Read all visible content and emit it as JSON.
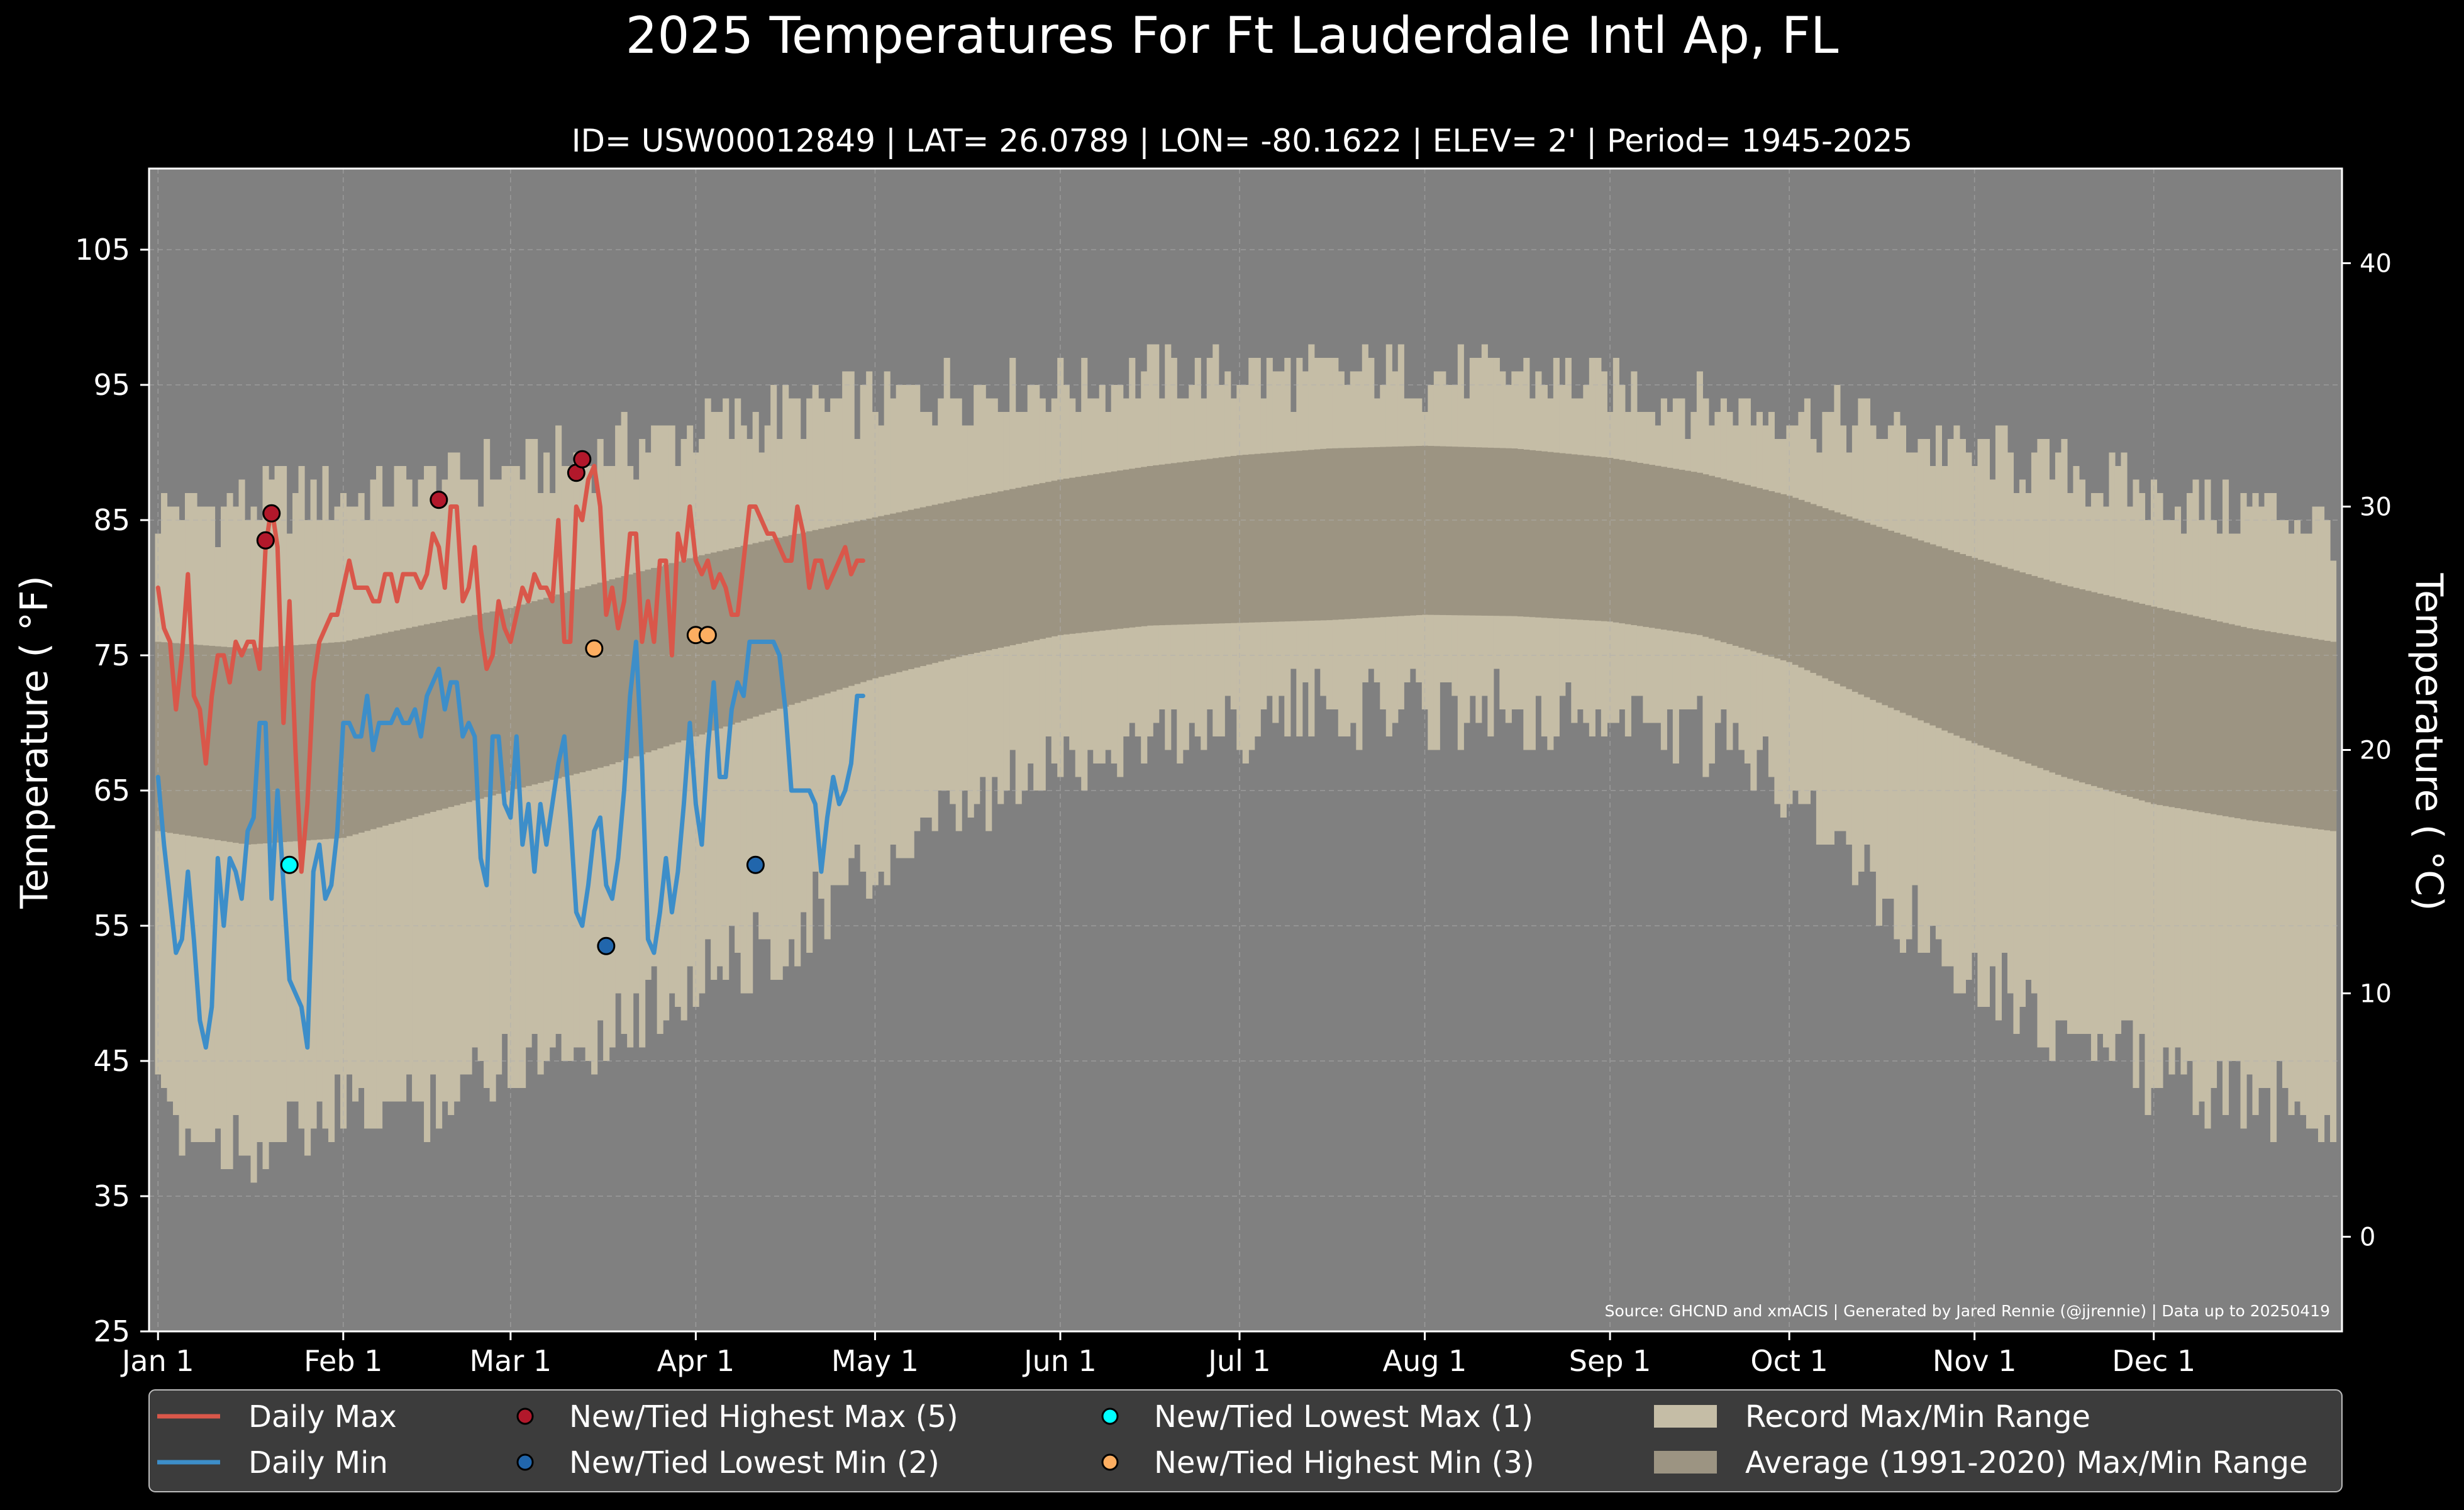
{
  "chart_data": {
    "type": "area",
    "title": "2025 Temperatures For Ft Lauderdale Intl Ap, FL",
    "subtitle": "ID= USW00012849 | LAT= 26.0789 | LON= -80.1622 | ELEV= 2' | Period= 1945-2025",
    "ylabel": "Temperature ( °F)",
    "ylabel_right": "Temperature ( °C)",
    "source": "Source: GHCND and xmACIS | Generated by Jared Rennie (@jjrennie) | Data up to 20250419",
    "ylim": [
      25,
      111
    ],
    "ylim_right": [
      -3.89,
      43.89
    ],
    "xlim": [
      -1.5,
      365.5
    ],
    "grid": true,
    "legend_position": "bottom",
    "x_ticks": [
      {
        "label": "Jan 1",
        "day": 0
      },
      {
        "label": "Feb 1",
        "day": 31
      },
      {
        "label": "Mar 1",
        "day": 59
      },
      {
        "label": "Apr 1",
        "day": 90
      },
      {
        "label": "May 1",
        "day": 120
      },
      {
        "label": "Jun 1",
        "day": 151
      },
      {
        "label": "Jul 1",
        "day": 181
      },
      {
        "label": "Aug 1",
        "day": 212
      },
      {
        "label": "Sep 1",
        "day": 243
      },
      {
        "label": "Oct 1",
        "day": 273
      },
      {
        "label": "Nov 1",
        "day": 304
      },
      {
        "label": "Dec 1",
        "day": 334
      }
    ],
    "y_ticks": [
      "25",
      "35",
      "45",
      "55",
      "65",
      "75",
      "85",
      "95",
      "105"
    ],
    "y_ticks_right": [
      "0",
      "10",
      "20",
      "30",
      "40"
    ],
    "record_max_knots": [
      [
        0,
        85
      ],
      [
        10,
        85
      ],
      [
        20,
        86
      ],
      [
        31,
        86
      ],
      [
        45,
        87
      ],
      [
        59,
        88
      ],
      [
        75,
        89
      ],
      [
        90,
        91
      ],
      [
        105,
        92
      ],
      [
        120,
        93
      ],
      [
        135,
        94
      ],
      [
        151,
        94
      ],
      [
        166,
        95
      ],
      [
        181,
        95
      ],
      [
        196,
        95
      ],
      [
        212,
        95
      ],
      [
        227,
        95
      ],
      [
        243,
        94
      ],
      [
        258,
        93
      ],
      [
        273,
        92
      ],
      [
        288,
        91
      ],
      [
        304,
        89
      ],
      [
        319,
        88
      ],
      [
        334,
        86
      ],
      [
        350,
        85
      ],
      [
        364,
        84
      ]
    ],
    "record_min_knots": [
      [
        0,
        42
      ],
      [
        10,
        40
      ],
      [
        20,
        40
      ],
      [
        31,
        42
      ],
      [
        45,
        43
      ],
      [
        59,
        46
      ],
      [
        75,
        48
      ],
      [
        90,
        52
      ],
      [
        105,
        55
      ],
      [
        120,
        60
      ],
      [
        135,
        64
      ],
      [
        151,
        68
      ],
      [
        166,
        70
      ],
      [
        181,
        71
      ],
      [
        196,
        72
      ],
      [
        212,
        72
      ],
      [
        227,
        72
      ],
      [
        243,
        71
      ],
      [
        258,
        70
      ],
      [
        273,
        67
      ],
      [
        288,
        58
      ],
      [
        304,
        53
      ],
      [
        319,
        48
      ],
      [
        334,
        45
      ],
      [
        350,
        43
      ],
      [
        364,
        42
      ]
    ],
    "normal_max_knots": [
      [
        0,
        76
      ],
      [
        15,
        75.5
      ],
      [
        31,
        76
      ],
      [
        45,
        77.3
      ],
      [
        59,
        78.5
      ],
      [
        75,
        80.5
      ],
      [
        90,
        82.3
      ],
      [
        105,
        83.8
      ],
      [
        120,
        85.2
      ],
      [
        135,
        86.6
      ],
      [
        151,
        88
      ],
      [
        166,
        89
      ],
      [
        181,
        89.8
      ],
      [
        196,
        90.3
      ],
      [
        212,
        90.5
      ],
      [
        227,
        90.3
      ],
      [
        243,
        89.6
      ],
      [
        258,
        88.5
      ],
      [
        273,
        86.8
      ],
      [
        288,
        84.5
      ],
      [
        304,
        82.2
      ],
      [
        319,
        80.2
      ],
      [
        334,
        78.6
      ],
      [
        350,
        77
      ],
      [
        364,
        76
      ]
    ],
    "normal_min_knots": [
      [
        0,
        62
      ],
      [
        15,
        61
      ],
      [
        31,
        61.5
      ],
      [
        45,
        63.3
      ],
      [
        59,
        65
      ],
      [
        75,
        66.8
      ],
      [
        90,
        69
      ],
      [
        105,
        71.2
      ],
      [
        120,
        73.3
      ],
      [
        135,
        75
      ],
      [
        151,
        76.5
      ],
      [
        166,
        77.2
      ],
      [
        181,
        77.4
      ],
      [
        196,
        77.6
      ],
      [
        212,
        78
      ],
      [
        227,
        77.9
      ],
      [
        243,
        77.5
      ],
      [
        258,
        76.5
      ],
      [
        273,
        74.5
      ],
      [
        288,
        71.5
      ],
      [
        304,
        68.5
      ],
      [
        319,
        66
      ],
      [
        334,
        64
      ],
      [
        350,
        62.8
      ],
      [
        364,
        62
      ]
    ],
    "series": [
      {
        "name": "Daily Max",
        "color": "#d9574a",
        "values": [
          80,
          77,
          76,
          71,
          75,
          81,
          72,
          71,
          67,
          72,
          75,
          75,
          73,
          76,
          75,
          76,
          76,
          74,
          83,
          86,
          83,
          70,
          79,
          68,
          59,
          64,
          73,
          76,
          77,
          78,
          78,
          80,
          82,
          80,
          80,
          80,
          79,
          79,
          81,
          81,
          79,
          81,
          81,
          81,
          80,
          81,
          84,
          83,
          80,
          86,
          86,
          79,
          80,
          83,
          77,
          74,
          75,
          79,
          77,
          76,
          78,
          80,
          79,
          81,
          80,
          80,
          79,
          85,
          76,
          76,
          86,
          85,
          88,
          89,
          86,
          78,
          80,
          77,
          79,
          84,
          84,
          76,
          79,
          76,
          82,
          82,
          75,
          84,
          82,
          86,
          82,
          81,
          82,
          80,
          81,
          80,
          78,
          78,
          82,
          86,
          86,
          85,
          84,
          84,
          83,
          82,
          82,
          86,
          84,
          80,
          82,
          82,
          80,
          81,
          82,
          83,
          81,
          82,
          82
        ]
      },
      {
        "name": "Daily Min",
        "color": "#3d8ec9",
        "values": [
          66,
          61,
          57,
          53,
          54,
          59,
          54,
          48,
          46,
          49,
          60,
          55,
          60,
          59,
          57,
          62,
          63,
          70,
          70,
          57,
          65,
          58,
          51,
          50,
          49,
          46,
          59,
          61,
          57,
          58,
          62,
          70,
          70,
          69,
          69,
          72,
          68,
          70,
          70,
          70,
          71,
          70,
          70,
          71,
          69,
          72,
          73,
          74,
          71,
          73,
          73,
          69,
          70,
          69,
          60,
          58,
          69,
          69,
          64,
          63,
          69,
          61,
          64,
          59,
          64,
          61,
          64,
          67,
          69,
          63,
          56,
          55,
          58,
          62,
          63,
          58,
          57,
          60,
          65,
          72,
          76,
          67,
          54,
          53,
          56,
          60,
          56,
          59,
          64,
          70,
          64,
          61,
          68,
          73,
          66,
          66,
          71,
          73,
          72,
          76,
          76,
          76,
          76,
          76,
          75,
          71,
          65,
          65,
          65,
          65,
          64,
          59,
          63,
          66,
          64,
          65,
          67,
          72,
          72
        ]
      }
    ],
    "legend": [
      {
        "label": "Daily Max",
        "kind": "line",
        "color": "#d9574a"
      },
      {
        "label": "Daily Min",
        "kind": "line",
        "color": "#3d8ec9"
      },
      {
        "label": "New/Tied Highest Max (5)",
        "kind": "dot",
        "color": "#b2182b"
      },
      {
        "label": "New/Tied Lowest Min (2)",
        "kind": "dot",
        "color": "#2166ac"
      },
      {
        "label": "New/Tied Lowest Max (1)",
        "kind": "dot",
        "color": "#00ffff"
      },
      {
        "label": "New/Tied Highest Min (3)",
        "kind": "dot",
        "color": "#fdae61"
      },
      {
        "label": "Record Max/Min Range",
        "kind": "patch",
        "color": "#c5bda6"
      },
      {
        "label": "Average (1991-2020) Max/Min Range",
        "kind": "patch",
        "color": "#9c9482"
      }
    ],
    "record_points": [
      {
        "type": "highest_max",
        "color": "#b2182b",
        "points": [
          [
            18,
            83.5
          ],
          [
            19,
            85.5
          ],
          [
            47,
            86.5
          ],
          [
            70,
            88.5
          ],
          [
            71,
            89.5
          ]
        ]
      },
      {
        "type": "lowest_min",
        "color": "#2166ac",
        "points": [
          [
            75,
            53.5
          ],
          [
            100,
            59.5
          ]
        ]
      },
      {
        "type": "lowest_max",
        "color": "#00ffff",
        "points": [
          [
            22,
            59.5
          ]
        ]
      },
      {
        "type": "highest_min",
        "color": "#fdae61",
        "points": [
          [
            73,
            75.5
          ],
          [
            90,
            76.5
          ],
          [
            92,
            76.5
          ]
        ]
      }
    ],
    "colors": {
      "figure_bg": "#000000",
      "plot_bg": "#808080",
      "record_band": "#c5bda6",
      "normal_band": "#9c9482",
      "text": "#ffffff",
      "legend_bg": "#3c3c3c"
    }
  }
}
